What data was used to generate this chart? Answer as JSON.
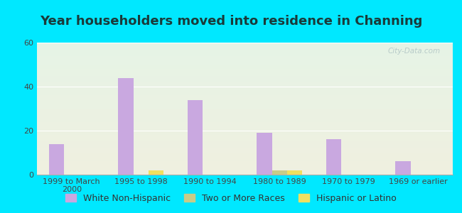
{
  "title": "Year householders moved into residence in Channing",
  "categories": [
    "1999 to March\n2000",
    "1995 to 1998",
    "1990 to 1994",
    "1980 to 1989",
    "1970 to 1979",
    "1969 or earlier"
  ],
  "series": {
    "White Non-Hispanic": [
      14,
      44,
      34,
      19,
      16,
      6
    ],
    "Two or More Races": [
      0,
      0,
      0,
      2,
      0,
      0
    ],
    "Hispanic or Latino": [
      0,
      2,
      0,
      2,
      0,
      0
    ]
  },
  "colors": {
    "White Non-Hispanic": "#c9a8e0",
    "Two or More Races": "#c8cc88",
    "Hispanic or Latino": "#f0e060"
  },
  "ylim": [
    0,
    60
  ],
  "yticks": [
    0,
    20,
    40,
    60
  ],
  "bar_width": 0.22,
  "background_outer": "#00e8ff",
  "background_inner_top": "#e6f4e6",
  "background_inner_bottom": "#f0f0e0",
  "watermark": "City-Data.com",
  "title_fontsize": 13,
  "tick_fontsize": 8,
  "legend_fontsize": 9
}
